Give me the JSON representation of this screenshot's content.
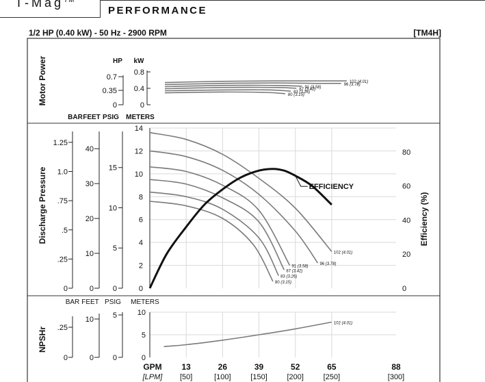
{
  "header": {
    "brand": "T-Mag",
    "brand_tm": "TM",
    "section": "PERFORMANCE"
  },
  "spec_line": "1/2 HP (0.40 kW) - 50 Hz - 2900 RPM",
  "model_code": "[TM4H]",
  "chart_data": [
    {
      "type": "line",
      "panel": "Motor Power",
      "ylabel": "Motor Power",
      "units": [
        "HP",
        "kW"
      ],
      "hp_ticks": [
        "0",
        "0.35",
        "0.7"
      ],
      "kw_ticks": [
        "0",
        "0.4",
        "0.8"
      ],
      "ylim_kw": [
        0,
        0.8
      ],
      "xlim_gpm": [
        0,
        88
      ],
      "series": [
        {
          "name": "102",
          "name_metric": "(4.01)",
          "x": [
            0,
            20,
            40,
            55,
            65
          ],
          "y": [
            0.54,
            0.57,
            0.58,
            0.58,
            0.58
          ]
        },
        {
          "name": "96",
          "name_metric": "(3.78)",
          "x": [
            0,
            20,
            40,
            55,
            63
          ],
          "y": [
            0.49,
            0.52,
            0.53,
            0.52,
            0.52
          ]
        },
        {
          "name": "91",
          "name_metric": "(3.58)",
          "x": [
            0,
            20,
            40,
            49
          ],
          "y": [
            0.44,
            0.47,
            0.47,
            0.45
          ]
        },
        {
          "name": "87",
          "name_metric": "(3.42)",
          "x": [
            0,
            20,
            40,
            47
          ],
          "y": [
            0.39,
            0.42,
            0.42,
            0.4
          ]
        },
        {
          "name": "83",
          "name_metric": "(3.26)",
          "x": [
            0,
            20,
            38,
            45
          ],
          "y": [
            0.34,
            0.36,
            0.36,
            0.33
          ]
        },
        {
          "name": "80",
          "name_metric": "(3.15)",
          "x": [
            0,
            20,
            36,
            43
          ],
          "y": [
            0.29,
            0.31,
            0.3,
            0.27
          ]
        }
      ]
    },
    {
      "type": "line",
      "panel": "Discharge Pressure",
      "ylabel": "Discharge Pressure",
      "y2label": "Efficiency (%)",
      "axis_titles": [
        "BAR",
        "FEET",
        "PSIG",
        "METERS"
      ],
      "bar_ticks": [
        "0",
        ".25",
        ".5",
        ".75",
        "1.0",
        "1.25"
      ],
      "feet_ticks": [
        "0",
        "10",
        "20",
        "30",
        "40"
      ],
      "psig_ticks": [
        "0",
        "5",
        "10",
        "15"
      ],
      "meter_ticks": [
        "0",
        "2",
        "4",
        "6",
        "8",
        "10",
        "12",
        "14"
      ],
      "efficiency_ticks": [
        "0",
        "20",
        "40",
        "60",
        "80"
      ],
      "ylim_m": [
        0,
        14
      ],
      "xlim_gpm": [
        0,
        88
      ],
      "series": [
        {
          "name": "102",
          "name_metric": "(4.01)",
          "x": [
            0,
            13,
            26,
            39,
            52,
            65
          ],
          "y": [
            13.6,
            13.0,
            11.7,
            9.6,
            7.0,
            3.2
          ]
        },
        {
          "name": "96",
          "name_metric": "(3.78)",
          "x": [
            0,
            13,
            26,
            39,
            52,
            60
          ],
          "y": [
            12.0,
            11.5,
            10.3,
            8.2,
            5.0,
            2.2
          ]
        },
        {
          "name": "91",
          "name_metric": "(3.58)",
          "x": [
            0,
            13,
            26,
            39,
            50
          ],
          "y": [
            10.6,
            10.2,
            9.0,
            6.8,
            2.0
          ]
        },
        {
          "name": "87",
          "name_metric": "(3.42)",
          "x": [
            0,
            13,
            26,
            39,
            48
          ],
          "y": [
            9.5,
            9.1,
            7.9,
            5.8,
            1.6
          ]
        },
        {
          "name": "83",
          "name_metric": "(3.26)",
          "x": [
            0,
            13,
            26,
            39,
            46
          ],
          "y": [
            8.4,
            8.0,
            6.9,
            4.4,
            1.1
          ]
        },
        {
          "name": "80",
          "name_metric": "(3.15)",
          "x": [
            0,
            13,
            26,
            37,
            44
          ],
          "y": [
            7.6,
            7.2,
            6.1,
            3.8,
            0.6
          ]
        },
        {
          "name": "EFFICIENCY",
          "axis": "right",
          "x": [
            0,
            6,
            13,
            19.5,
            26,
            32.5,
            39,
            44,
            48,
            52,
            58,
            65
          ],
          "y": [
            0,
            20,
            36,
            49,
            58,
            65,
            69,
            70,
            69,
            66,
            60,
            49
          ]
        }
      ],
      "efficiency_ylim": [
        0,
        94
      ]
    },
    {
      "type": "line",
      "panel": "NPSHr",
      "ylabel": "NPSHr",
      "axis_titles": [
        "BAR",
        "FEET",
        "PSIG",
        "METERS"
      ],
      "bar_ticks": [
        "0",
        ".25"
      ],
      "feet_ticks": [
        "0",
        "10"
      ],
      "psig_ticks": [
        "0",
        "5"
      ],
      "meter_ticks": [
        "0",
        "5",
        "10"
      ],
      "ylim_m": [
        0,
        10
      ],
      "xlim_gpm": [
        0,
        88
      ],
      "x_ticks_gpm": [
        "GPM",
        "13",
        "26",
        "39",
        "52",
        "65",
        "88"
      ],
      "x_ticks_lpm": [
        "[LPM]",
        "[50]",
        "[100]",
        "[150]",
        "[200]",
        "[250]",
        "[300]"
      ],
      "series": [
        {
          "name": "102",
          "name_metric": "(4.01)",
          "x": [
            5,
            13,
            26,
            39,
            52,
            65
          ],
          "y": [
            2.4,
            2.8,
            3.8,
            5.0,
            6.3,
            7.8
          ]
        }
      ]
    }
  ],
  "colors": {
    "curve": "#7a7a7a",
    "efficiency": "#111111",
    "grid": "#d9d9d9",
    "frame": "#333333"
  }
}
